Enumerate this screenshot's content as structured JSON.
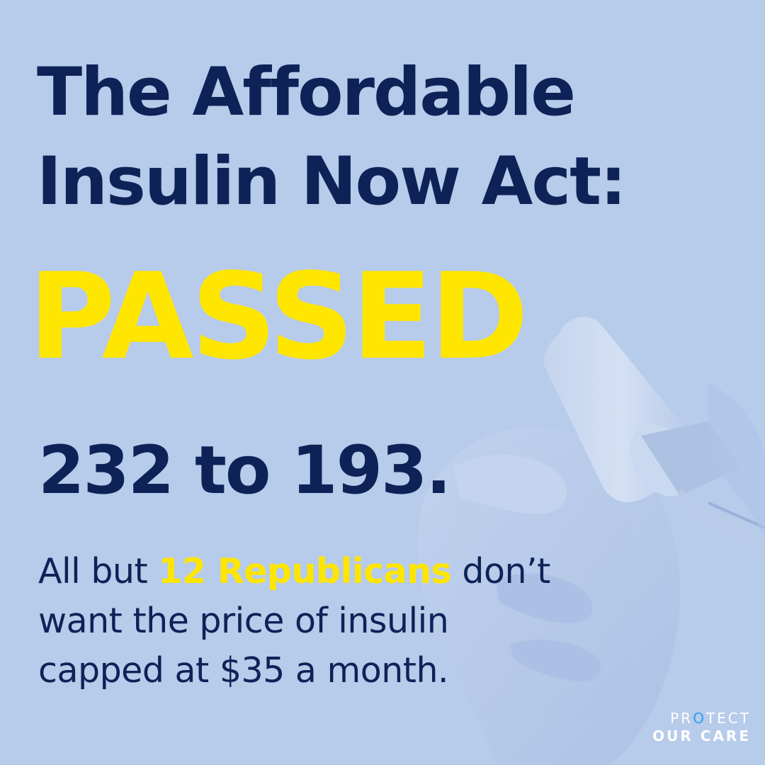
{
  "headline": {
    "line1": "The Affordable",
    "line2": "Insulin Now Act:"
  },
  "status": "PASSED",
  "vote": "232 to 193.",
  "body": {
    "line1_prefix": "All but ",
    "line1_highlight": "12 Republicans",
    "line1_suffix": " don’t",
    "line2": "want the price of insulin",
    "line3": "capped at $35 a month."
  },
  "logo": {
    "row1_start": "PR",
    "row1_accent": "O",
    "row1_end": "TECT",
    "row2": "OUR CARE"
  },
  "colors": {
    "background": "#b7cbea",
    "navy": "#0d2257",
    "yellow": "#ffe600",
    "logo_accent": "#2b9ff2",
    "white": "#ffffff"
  },
  "background_image": "gloved-hand-holding-insulin-vial-and-syringe"
}
